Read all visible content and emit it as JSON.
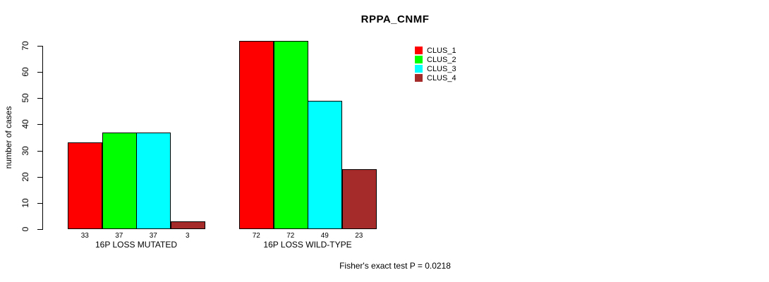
{
  "title": "RPPA_CNMF",
  "ylabel": "number of cases",
  "annotation": "Fisher's exact test P = 0.0218",
  "legend": {
    "items": [
      {
        "label": "CLUS_1",
        "color": "#FF0000"
      },
      {
        "label": "CLUS_2",
        "color": "#00FF00"
      },
      {
        "label": "CLUS_3",
        "color": "#00FFFF"
      },
      {
        "label": "CLUS_4",
        "color": "#A52A2A"
      }
    ]
  },
  "chart_data": {
    "type": "bar",
    "title": "RPPA_CNMF",
    "xlabel": "",
    "ylabel": "number of cases",
    "ylim": [
      0,
      70
    ],
    "yticks": [
      0,
      10,
      20,
      30,
      40,
      50,
      60,
      70
    ],
    "categories": [
      "16P LOSS MUTATED",
      "16P LOSS WILD-TYPE"
    ],
    "series": [
      {
        "name": "CLUS_1",
        "color": "#FF0000",
        "values": [
          33,
          72
        ]
      },
      {
        "name": "CLUS_2",
        "color": "#00FF00",
        "values": [
          37,
          72
        ]
      },
      {
        "name": "CLUS_3",
        "color": "#00FFFF",
        "values": [
          37,
          49
        ]
      },
      {
        "name": "CLUS_4",
        "color": "#A52A2A",
        "values": [
          3,
          23
        ]
      }
    ],
    "bar_value_labels": [
      [
        "33",
        "37",
        "37",
        "3"
      ],
      [
        "72",
        "72",
        "49",
        "23"
      ]
    ],
    "grid": false,
    "legend_position": "top-right",
    "annotation": "Fisher's exact test P = 0.0218"
  }
}
